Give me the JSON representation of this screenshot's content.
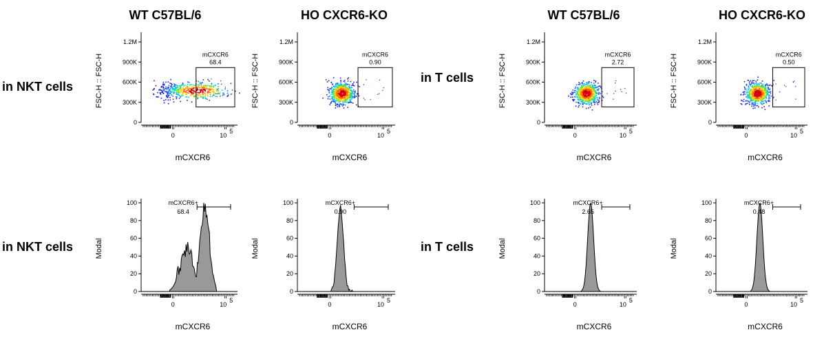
{
  "figure": {
    "column_titles": [
      "WT C57BL/6",
      "HO CXCR6-KO",
      "WT C57BL/6",
      "HO CXCR6-KO"
    ],
    "row_labels": [
      "in NKT cells",
      "in T cells",
      "in NKT cells",
      "in T cells"
    ]
  },
  "chart_data": [
    {
      "type": "scatter",
      "title": "WT C57BL/6",
      "row_label": "in NKT cells",
      "xlabel": "mCXCR6",
      "ylabel": "FSC-H :: FSC-H",
      "yticks": [
        "0",
        "300K",
        "600K",
        "900K",
        "1.2M"
      ],
      "yrange": [
        0,
        1300000
      ],
      "xticks": [
        "0",
        "10^5"
      ],
      "gate": {
        "name": "mCXCR6",
        "value": "68.4"
      },
      "population": "positive shoulder"
    },
    {
      "type": "scatter",
      "title": "HO CXCR6-KO",
      "row_label": "in NKT cells",
      "xlabel": "mCXCR6",
      "ylabel": "FSC-H :: FSC-H",
      "yticks": [
        "0",
        "300K",
        "600K",
        "900K",
        "1.2M"
      ],
      "yrange": [
        0,
        1300000
      ],
      "xticks": [
        "0",
        "10^5"
      ],
      "gate": {
        "name": "mCXCR6",
        "value": "0.90"
      },
      "population": "negative cluster"
    },
    {
      "type": "scatter",
      "title": "WT C57BL/6",
      "row_label": "in T cells",
      "xlabel": "mCXCR6",
      "ylabel": "FSC-H :: FSC-H",
      "yticks": [
        "0",
        "300K",
        "600K",
        "900K",
        "1.2M"
      ],
      "yrange": [
        0,
        1300000
      ],
      "xticks": [
        "0",
        "10^5"
      ],
      "gate": {
        "name": "mCXCR6",
        "value": "2.72"
      },
      "population": "negative cluster"
    },
    {
      "type": "scatter",
      "title": "HO CXCR6-KO",
      "row_label": "in T cells",
      "xlabel": "mCXCR6",
      "ylabel": "FSC-H :: FSC-H",
      "yticks": [
        "0",
        "300K",
        "600K",
        "900K",
        "1.2M"
      ],
      "yrange": [
        0,
        1300000
      ],
      "xticks": [
        "0",
        "10^5"
      ],
      "gate": {
        "name": "mCXCR6",
        "value": "0.50"
      },
      "population": "negative cluster"
    },
    {
      "type": "area",
      "title": "WT C57BL/6",
      "row_label": "in NKT cells",
      "xlabel": "mCXCR6",
      "ylabel": "Modal",
      "yticks": [
        "0",
        "20",
        "40",
        "60",
        "80",
        "100"
      ],
      "yrange": [
        0,
        100
      ],
      "xticks": [
        "0",
        "10^5"
      ],
      "gate": {
        "name": "mCXCR6+",
        "value": "68.4"
      },
      "population": "broad positive"
    },
    {
      "type": "area",
      "title": "HO CXCR6-KO",
      "row_label": "in NKT cells",
      "xlabel": "mCXCR6",
      "ylabel": "Modal",
      "yticks": [
        "0",
        "20",
        "40",
        "60",
        "80",
        "100"
      ],
      "yrange": [
        0,
        100
      ],
      "xticks": [
        "0",
        "10^5"
      ],
      "gate": {
        "name": "mCXCR6+",
        "value": "0.90"
      },
      "population": "narrow negative"
    },
    {
      "type": "area",
      "title": "WT C57BL/6",
      "row_label": "in T cells",
      "xlabel": "mCXCR6",
      "ylabel": "Modal",
      "yticks": [
        "0",
        "20",
        "40",
        "60",
        "80",
        "100"
      ],
      "yrange": [
        0,
        100
      ],
      "xticks": [
        "0",
        "10^5"
      ],
      "gate": {
        "name": "mCXCR6+",
        "value": "2.65"
      },
      "population": "smooth negative"
    },
    {
      "type": "area",
      "title": "HO CXCR6-KO",
      "row_label": "in T cells",
      "xlabel": "mCXCR6",
      "ylabel": "Modal",
      "yticks": [
        "0",
        "20",
        "40",
        "60",
        "80",
        "100"
      ],
      "yrange": [
        0,
        100
      ],
      "xticks": [
        "0",
        "10^5"
      ],
      "gate": {
        "name": "mCXCR6+",
        "value": "0.48"
      },
      "population": "smooth negative"
    }
  ]
}
